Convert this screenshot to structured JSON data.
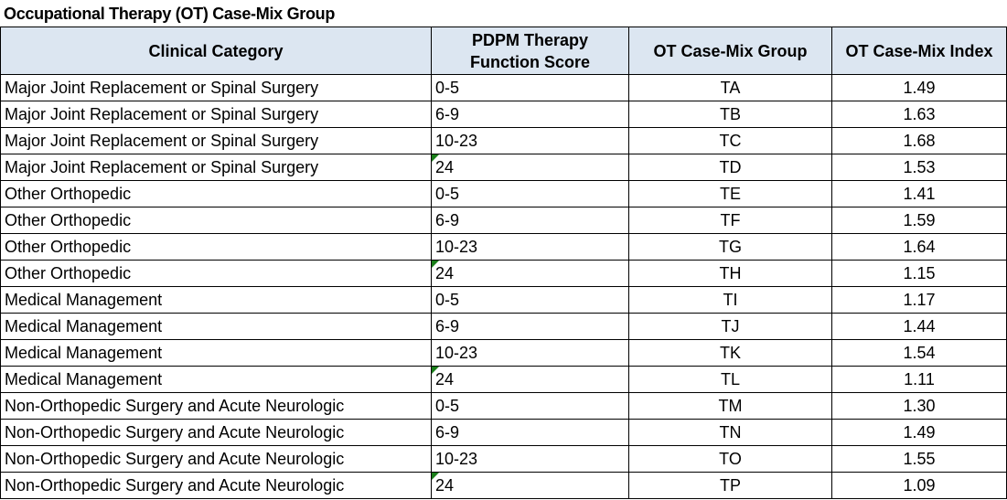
{
  "title": "Occupational Therapy (OT) Case-Mix Group",
  "columns": [
    "Clinical Category",
    "PDPM Therapy Function Score",
    "OT Case-Mix Group",
    "OT Case-Mix Index"
  ],
  "rows": [
    {
      "category": "Major Joint Replacement or Spinal Surgery",
      "score": "0-5",
      "group": "TA",
      "index": "1.49",
      "flag": false
    },
    {
      "category": "Major Joint Replacement or Spinal Surgery",
      "score": "6-9",
      "group": "TB",
      "index": "1.63",
      "flag": false
    },
    {
      "category": "Major Joint Replacement or Spinal Surgery",
      "score": "10-23",
      "group": "TC",
      "index": "1.68",
      "flag": false
    },
    {
      "category": "Major Joint Replacement or Spinal Surgery",
      "score": "24",
      "group": "TD",
      "index": "1.53",
      "flag": true
    },
    {
      "category": "Other Orthopedic",
      "score": "0-5",
      "group": "TE",
      "index": "1.41",
      "flag": false
    },
    {
      "category": "Other Orthopedic",
      "score": "6-9",
      "group": "TF",
      "index": "1.59",
      "flag": false
    },
    {
      "category": "Other Orthopedic",
      "score": "10-23",
      "group": "TG",
      "index": "1.64",
      "flag": false
    },
    {
      "category": "Other Orthopedic",
      "score": "24",
      "group": "TH",
      "index": "1.15",
      "flag": true
    },
    {
      "category": "Medical Management",
      "score": "0-5",
      "group": "TI",
      "index": "1.17",
      "flag": false
    },
    {
      "category": "Medical Management",
      "score": "6-9",
      "group": "TJ",
      "index": "1.44",
      "flag": false
    },
    {
      "category": "Medical Management",
      "score": "10-23",
      "group": "TK",
      "index": "1.54",
      "flag": false
    },
    {
      "category": "Medical Management",
      "score": "24",
      "group": "TL",
      "index": "1.11",
      "flag": true
    },
    {
      "category": "Non-Orthopedic Surgery and Acute Neurologic",
      "score": "0-5",
      "group": "TM",
      "index": "1.30",
      "flag": false
    },
    {
      "category": "Non-Orthopedic Surgery and Acute Neurologic",
      "score": "6-9",
      "group": "TN",
      "index": "1.49",
      "flag": false
    },
    {
      "category": "Non-Orthopedic Surgery and Acute Neurologic",
      "score": "10-23",
      "group": "TO",
      "index": "1.55",
      "flag": false
    },
    {
      "category": "Non-Orthopedic Surgery and Acute Neurologic",
      "score": "24",
      "group": "TP",
      "index": "1.09",
      "flag": true
    }
  ],
  "colors": {
    "header_bg": "#dce6f1",
    "flag": "#1a7f1a",
    "border": "#000000"
  }
}
